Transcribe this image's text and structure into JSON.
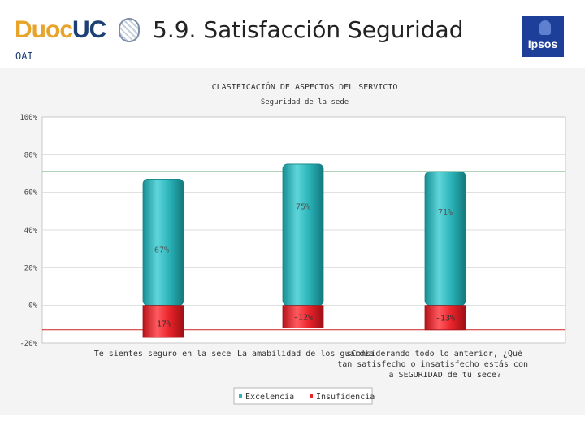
{
  "header": {
    "logo_part1": "Duoc",
    "logo_part2": "UC",
    "subtitle": "OAI",
    "title": "5.9. Satisfacción Seguridad",
    "partner_logo": "Ipsos"
  },
  "chart_data": {
    "type": "bar",
    "title": "CLASIFICACIÓN DE ASPECTOS DEL SERVICIO",
    "subtitle": "Seguridad de la sede",
    "categories": [
      [
        "Te sientes seguro en la sece"
      ],
      [
        "La amabilidad de los guardia"
      ],
      [
        "sConsiderando todo lo anterior, ¿Qué",
        "tan satisfecho o insatisfecho estás con",
        "a SEGURIDAD de tu sece?"
      ]
    ],
    "series": [
      {
        "name": "Excelencia",
        "values": [
          67,
          75,
          71
        ],
        "color": "#2ab3b8"
      },
      {
        "name": "Insufidencia",
        "values": [
          -17,
          -12,
          -13
        ],
        "color": "#e8232a"
      }
    ],
    "value_labels": {
      "positive": [
        "67%",
        "75%",
        "71%"
      ],
      "negative": [
        "-17%",
        "-12%",
        "-13%"
      ]
    },
    "y_ticks": [
      "100%",
      "80%",
      "60%",
      "40%",
      "20%",
      "0%",
      "-20%"
    ],
    "ylim": [
      -20,
      100
    ],
    "reference_lines": [
      {
        "value": 71,
        "color": "#2e8b3a"
      },
      {
        "value": -13,
        "color": "#cc2222"
      }
    ],
    "grid": true,
    "legend_position": "bottom"
  }
}
